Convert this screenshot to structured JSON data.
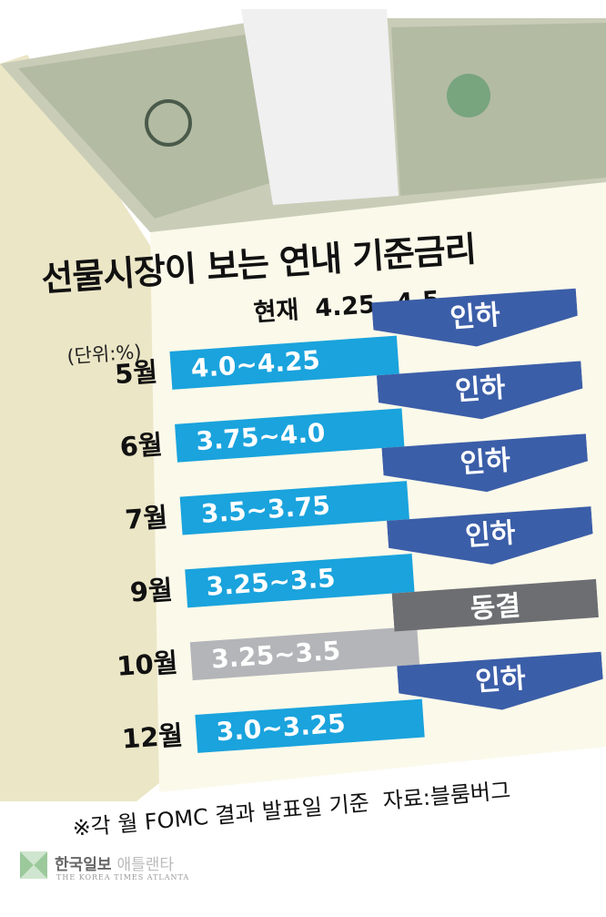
{
  "chart_data": {
    "type": "table",
    "title": "선물시장이 보는 연내 기준금리",
    "current_label": "현재",
    "current_value": "4.25~4.5",
    "unit": "(단위:%)",
    "rows": [
      {
        "month": "5월",
        "range": "4.0~4.25",
        "action": "인하"
      },
      {
        "month": "6월",
        "range": "3.75~4.0",
        "action": "인하"
      },
      {
        "month": "7월",
        "range": "3.5~3.75",
        "action": "인하"
      },
      {
        "month": "9월",
        "range": "3.25~3.5",
        "action": "인하"
      },
      {
        "month": "10월",
        "range": "3.25~3.5",
        "action": "동결"
      },
      {
        "month": "12월",
        "range": "3.0~3.25",
        "action": "인하"
      }
    ],
    "note": "※각 월 FOMC 결과 발표일 기준",
    "source": "자료:블룸버그"
  },
  "colors": {
    "cut_bar": "#1aa3dd",
    "cut_arrow": "#3b5ea8",
    "hold_bar": "#b4b5b9",
    "hold_arrow": "#6d6e72",
    "face": "#fbf9ea",
    "side": "#ece7c8"
  },
  "logo": {
    "ko": "한국일보",
    "ko_sub": "애틀랜타",
    "en": "THE KOREA TIMES ATLANTA"
  }
}
